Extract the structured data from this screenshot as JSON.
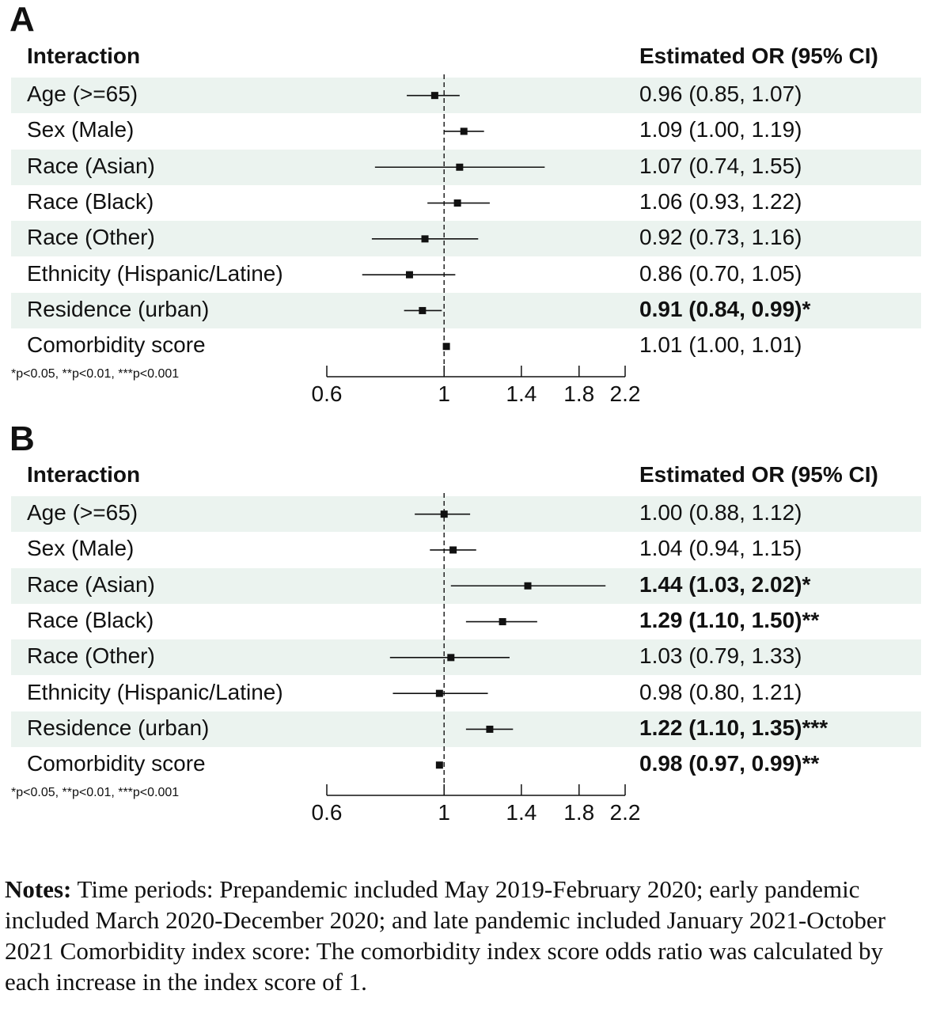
{
  "chart_data": [
    {
      "type": "forest",
      "panel": "A",
      "header_left": "Interaction",
      "header_right": "Estimated OR (95% CI)",
      "footnote": "*p<0.05, **p<0.01, ***p<0.001",
      "x_ticks": [
        "0.6",
        "1",
        "1.4",
        "1.8",
        "2.2"
      ],
      "rows": [
        {
          "label": "Age (>=65)",
          "or": 0.96,
          "lo": 0.85,
          "hi": 1.07,
          "text": "0.96 (0.85, 1.07)",
          "sig": false
        },
        {
          "label": "Sex (Male)",
          "or": 1.09,
          "lo": 1.0,
          "hi": 1.19,
          "text": "1.09 (1.00, 1.19)",
          "sig": false
        },
        {
          "label": "Race (Asian)",
          "or": 1.07,
          "lo": 0.74,
          "hi": 1.55,
          "text": "1.07 (0.74, 1.55)",
          "sig": false
        },
        {
          "label": "Race (Black)",
          "or": 1.06,
          "lo": 0.93,
          "hi": 1.22,
          "text": "1.06 (0.93, 1.22)",
          "sig": false
        },
        {
          "label": "Race (Other)",
          "or": 0.92,
          "lo": 0.73,
          "hi": 1.16,
          "text": "0.92 (0.73, 1.16)",
          "sig": false
        },
        {
          "label": "Ethnicity (Hispanic/Latine)",
          "or": 0.86,
          "lo": 0.7,
          "hi": 1.05,
          "text": "0.86 (0.70, 1.05)",
          "sig": false
        },
        {
          "label": "Residence (urban)",
          "or": 0.91,
          "lo": 0.84,
          "hi": 0.99,
          "text": "0.91 (0.84, 0.99)*",
          "sig": true
        },
        {
          "label": "Comorbidity score",
          "or": 1.01,
          "lo": 1.0,
          "hi": 1.01,
          "text": "1.01 (1.00, 1.01)",
          "sig": false
        }
      ]
    },
    {
      "type": "forest",
      "panel": "B",
      "header_left": "Interaction",
      "header_right": "Estimated OR (95% CI)",
      "footnote": "*p<0.05, **p<0.01, ***p<0.001",
      "x_ticks": [
        "0.6",
        "1",
        "1.4",
        "1.8",
        "2.2"
      ],
      "rows": [
        {
          "label": "Age (>=65)",
          "or": 1.0,
          "lo": 0.88,
          "hi": 1.12,
          "text": "1.00 (0.88, 1.12)",
          "sig": false
        },
        {
          "label": "Sex (Male)",
          "or": 1.04,
          "lo": 0.94,
          "hi": 1.15,
          "text": "1.04 (0.94, 1.15)",
          "sig": false
        },
        {
          "label": "Race (Asian)",
          "or": 1.44,
          "lo": 1.03,
          "hi": 2.02,
          "text": "1.44 (1.03, 2.02)*",
          "sig": true
        },
        {
          "label": "Race (Black)",
          "or": 1.29,
          "lo": 1.1,
          "hi": 1.5,
          "text": "1.29 (1.10, 1.50)**",
          "sig": true
        },
        {
          "label": "Race (Other)",
          "or": 1.03,
          "lo": 0.79,
          "hi": 1.33,
          "text": "1.03 (0.79, 1.33)",
          "sig": false
        },
        {
          "label": "Ethnicity (Hispanic/Latine)",
          "or": 0.98,
          "lo": 0.8,
          "hi": 1.21,
          "text": "0.98 (0.80, 1.21)",
          "sig": false
        },
        {
          "label": "Residence (urban)",
          "or": 1.22,
          "lo": 1.1,
          "hi": 1.35,
          "text": "1.22 (1.10, 1.35)***",
          "sig": true
        },
        {
          "label": "Comorbidity score",
          "or": 0.98,
          "lo": 0.97,
          "hi": 0.99,
          "text": "0.98 (0.97, 0.99)**",
          "sig": true
        }
      ]
    }
  ],
  "notes": {
    "label": "Notes:",
    "text": " Time periods: Prepandemic included May 2019-February 2020; early pandemic included March 2020-December 2020; and late pandemic included January 2021-October 2021 Comorbidity index score: The comorbidity index score odds ratio was calculated by each increase in the index score of 1."
  }
}
